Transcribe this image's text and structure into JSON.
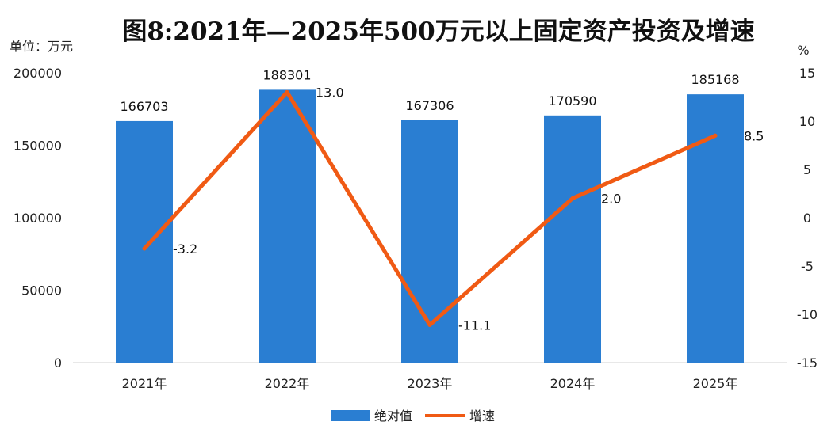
{
  "chart_data": {
    "type": "bar",
    "title": "图8:2021年—2025年500万元以上固定资产投资及增速",
    "ylabel_left": "单位：万元",
    "ylabel_right": "%",
    "categories": [
      "2021年",
      "2022年",
      "2023年",
      "2024年",
      "2025年"
    ],
    "series": [
      {
        "name": "绝对值",
        "type": "bar",
        "axis": "left",
        "values": [
          166703,
          188301,
          167306,
          170590,
          185168
        ],
        "labels": [
          "166703",
          "188301",
          "167306",
          "170590",
          "185168"
        ],
        "color": "#2A7ED2"
      },
      {
        "name": "增速",
        "type": "line",
        "axis": "right",
        "values": [
          -3.2,
          13.0,
          -11.1,
          2.0,
          8.5
        ],
        "labels": [
          "-3.2",
          "13.0",
          "-11.1",
          "2.0",
          "8.5"
        ],
        "color": "#F05A14"
      }
    ],
    "ylim_left": [
      0,
      200000
    ],
    "yticks_left": [
      0,
      50000,
      100000,
      150000,
      200000
    ],
    "ylim_right": [
      -15,
      15
    ],
    "yticks_right": [
      -15,
      -10,
      -5,
      0,
      5,
      10,
      15
    ],
    "grid": false,
    "legend_position": "bottom"
  }
}
